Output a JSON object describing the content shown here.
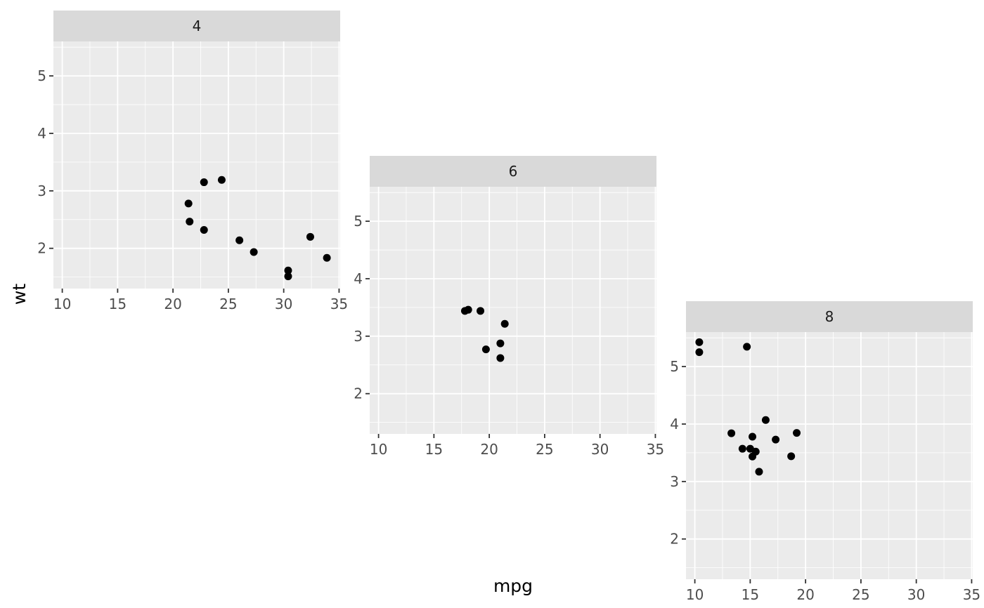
{
  "chart_data": {
    "type": "scatter",
    "title": "",
    "xlabel": "mpg",
    "ylabel": "wt",
    "xlim": [
      9.2,
      35.1
    ],
    "ylim": [
      1.3,
      5.6
    ],
    "x_ticks": [
      10,
      15,
      20,
      25,
      30,
      35
    ],
    "y_ticks": [
      2,
      3,
      4,
      5
    ],
    "x_tick_labels": [
      "10",
      "15",
      "20",
      "25",
      "30",
      "35"
    ],
    "y_tick_labels": [
      "2",
      "3",
      "4",
      "5"
    ],
    "grid": true,
    "legend": "none",
    "colors": {
      "panel_background": "#EBEBEB",
      "strip_background": "#D9D9D9",
      "grid": "#FFFFFF",
      "point": "#000000",
      "tick": "#333333"
    },
    "facets": [
      {
        "label": "4",
        "points": [
          {
            "x": 22.8,
            "y": 2.32
          },
          {
            "x": 24.4,
            "y": 3.19
          },
          {
            "x": 22.8,
            "y": 3.15
          },
          {
            "x": 32.4,
            "y": 2.2
          },
          {
            "x": 30.4,
            "y": 1.615
          },
          {
            "x": 33.9,
            "y": 1.835
          },
          {
            "x": 21.5,
            "y": 2.465
          },
          {
            "x": 27.3,
            "y": 1.935
          },
          {
            "x": 26.0,
            "y": 2.14
          },
          {
            "x": 30.4,
            "y": 1.513
          },
          {
            "x": 21.4,
            "y": 2.78
          }
        ]
      },
      {
        "label": "6",
        "points": [
          {
            "x": 21.0,
            "y": 2.62
          },
          {
            "x": 21.0,
            "y": 2.875
          },
          {
            "x": 21.4,
            "y": 3.215
          },
          {
            "x": 18.1,
            "y": 3.46
          },
          {
            "x": 19.2,
            "y": 3.44
          },
          {
            "x": 17.8,
            "y": 3.44
          },
          {
            "x": 19.7,
            "y": 2.77
          }
        ]
      },
      {
        "label": "8",
        "points": [
          {
            "x": 18.7,
            "y": 3.44
          },
          {
            "x": 14.3,
            "y": 3.57
          },
          {
            "x": 16.4,
            "y": 4.07
          },
          {
            "x": 17.3,
            "y": 3.73
          },
          {
            "x": 15.2,
            "y": 3.78
          },
          {
            "x": 10.4,
            "y": 5.25
          },
          {
            "x": 10.4,
            "y": 5.424
          },
          {
            "x": 14.7,
            "y": 5.345
          },
          {
            "x": 15.5,
            "y": 3.52
          },
          {
            "x": 15.2,
            "y": 3.435
          },
          {
            "x": 13.3,
            "y": 3.84
          },
          {
            "x": 19.2,
            "y": 3.845
          },
          {
            "x": 15.8,
            "y": 3.17
          },
          {
            "x": 15.0,
            "y": 3.57
          }
        ]
      }
    ]
  }
}
